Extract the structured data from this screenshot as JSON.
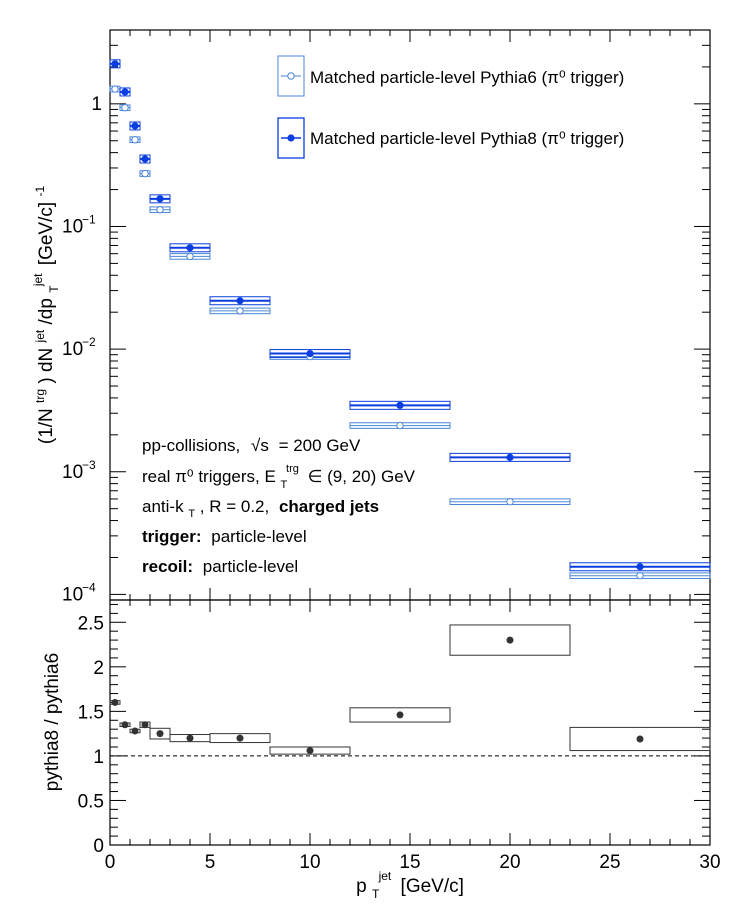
{
  "chart_data": [
    {
      "type": "scatter",
      "panel": "top",
      "xlabel": "p_T^jet [GeV/c]",
      "ylabel": "(1/N^trg) dN^jet/dp_T^jet [GeV/c]^-1",
      "log_y": true,
      "xlim": [
        0,
        30
      ],
      "ylim": [
        9e-05,
        4.0
      ],
      "grid": false,
      "legend": "top-right",
      "series": [
        {
          "name": "Matched particle-level Pythia6 (π⁰ trigger)",
          "color": "#4a86d8",
          "marker": "open-circle",
          "x": [
            0.25,
            0.75,
            1.25,
            1.75,
            2.5,
            4.0,
            6.5,
            10.0,
            14.5,
            20.0,
            26.5
          ],
          "y": [
            1.32,
            0.93,
            0.51,
            0.27,
            0.137,
            0.057,
            0.0205,
            0.0087,
            0.00238,
            0.00057,
            0.000142
          ],
          "xerr": [
            0.25,
            0.25,
            0.25,
            0.25,
            0.5,
            1.0,
            1.5,
            2.0,
            2.5,
            3.0,
            3.5
          ]
        },
        {
          "name": "Matched particle-level Pythia8 (π⁰ trigger)",
          "color": "#0a3ee0",
          "marker": "filled-circle",
          "x": [
            0.25,
            0.75,
            1.25,
            1.75,
            2.5,
            4.0,
            6.5,
            10.0,
            14.5,
            20.0,
            26.5
          ],
          "y": [
            2.12,
            1.25,
            0.66,
            0.355,
            0.168,
            0.067,
            0.0248,
            0.0092,
            0.00348,
            0.00131,
            0.000168
          ],
          "xerr": [
            0.25,
            0.25,
            0.25,
            0.25,
            0.5,
            1.0,
            1.5,
            2.0,
            2.5,
            3.0,
            3.5
          ]
        }
      ],
      "y_ticks": [
        {
          "v": 0.0001,
          "m": "10",
          "e": "−4"
        },
        {
          "v": 0.001,
          "m": "10",
          "e": "−3"
        },
        {
          "v": 0.01,
          "m": "10",
          "e": "−2"
        },
        {
          "v": 0.1,
          "m": "10",
          "e": "−1"
        },
        {
          "v": 1,
          "m": "1",
          "e": ""
        }
      ],
      "annotations": {
        "collisions": "pp-collisions,",
        "sqrt_s": "√s",
        "energy": "= 200 GeV",
        "triggers": "real π⁰ triggers, E",
        "et_sub": "T",
        "et_sup": "trg",
        "et_range": "∈ (9, 20) GeV",
        "algo": "anti-k",
        "algo_sub": "T",
        "algo_rest": ", R = 0.2,",
        "jets": "charged jets",
        "trigger_bold": "trigger:",
        "trigger_level": "particle-level",
        "recoil_bold": "recoil:",
        "recoil_level": "particle-level"
      }
    },
    {
      "type": "scatter",
      "panel": "bottom",
      "xlabel": "p_T^jet [GeV/c]",
      "ylabel": "pythia8 / pythia6",
      "xlim": [
        0,
        30
      ],
      "ylim": [
        0,
        2.75
      ],
      "reference_line": 1.0,
      "grid": false,
      "x_ticks": [
        0,
        5,
        10,
        15,
        20,
        25,
        30
      ],
      "y_ticks": [
        0,
        0.5,
        1,
        1.5,
        2,
        2.5
      ],
      "y_tick_labels": [
        "0",
        "0.5",
        "1",
        "1.5",
        "2",
        "2.5"
      ],
      "series": [
        {
          "name": "",
          "color": "#333333",
          "x": [
            0.25,
            0.75,
            1.25,
            1.75,
            2.5,
            4.0,
            6.5,
            10.0,
            14.5,
            20.0,
            26.5
          ],
          "y": [
            1.6,
            1.35,
            1.28,
            1.35,
            1.25,
            1.2,
            1.2,
            1.06,
            1.46,
            2.3,
            1.19
          ],
          "xerr": [
            0.25,
            0.25,
            0.25,
            0.25,
            0.5,
            1.0,
            1.5,
            2.0,
            2.5,
            3.0,
            3.5
          ],
          "box_half_height": [
            0.02,
            0.02,
            0.02,
            0.03,
            0.06,
            0.04,
            0.05,
            0.04,
            0.08,
            0.17,
            0.13
          ]
        }
      ]
    }
  ],
  "axis_label": {
    "x_main": "p",
    "x_sub": "T",
    "x_sup": "jet",
    "x_unit": "[GeV/c]",
    "y_top_a": "(1/N",
    "y_top_trg": "trg",
    "y_top_b": ") dN",
    "y_top_jet1": "jet",
    "y_top_c": "/dp",
    "y_top_T": "T",
    "y_top_jet2": "jet",
    "y_top_d": "[GeV/c]",
    "y_top_exp": "-1",
    "y_bottom": "pythia8 / pythia6"
  },
  "legend_entries": [
    "Matched particle-level Pythia6 (π⁰ trigger)",
    "Matched particle-level Pythia8 (π⁰ trigger)"
  ]
}
